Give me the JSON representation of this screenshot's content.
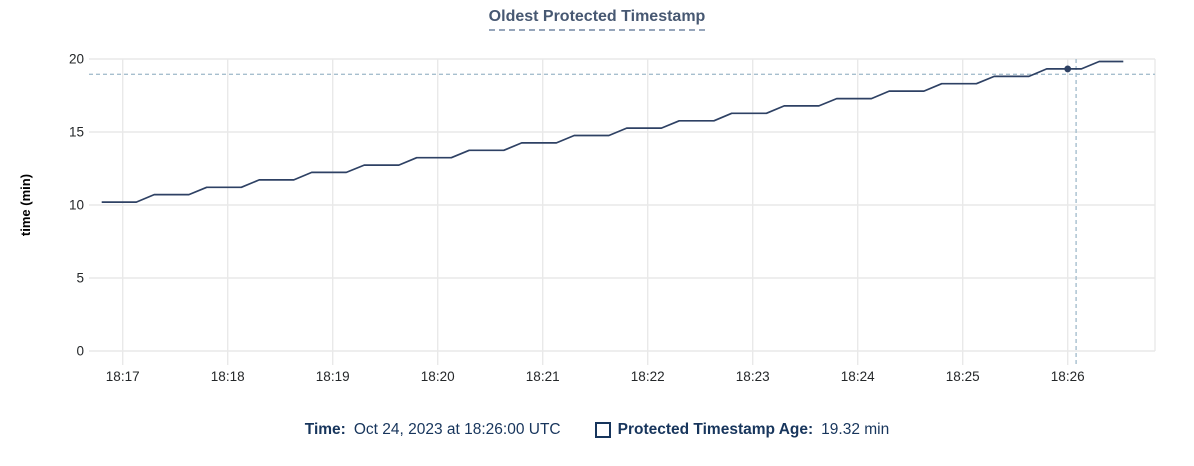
{
  "header": {
    "title": "Oldest Protected Timestamp"
  },
  "legend": {
    "time_label": "Time:",
    "time_value": "Oct 24, 2023 at 18:26:00 UTC",
    "age_label": "Protected Timestamp Age:",
    "age_value": "19.32 min"
  },
  "colors": {
    "line": "#2e4164",
    "dot": "#2e4164",
    "title": "#475872",
    "legend_text": "#17355c",
    "grid": "#e9e9e9",
    "crosshair": "#a6bfce",
    "tick_text": "#242729",
    "axis_label": "#000000"
  },
  "chart_data": {
    "type": "line",
    "title": "Oldest Protected Timestamp",
    "xlabel": "",
    "ylabel": "time (min)",
    "grid": true,
    "legend_position": "bottom",
    "ylim": [
      0,
      20
    ],
    "y_ticks": [
      0,
      5,
      10,
      15,
      20
    ],
    "x_ticks": [
      "18:17",
      "18:18",
      "18:19",
      "18:20",
      "18:21",
      "18:22",
      "18:23",
      "18:24",
      "18:25",
      "18:26"
    ],
    "x_unit": "minutes after 18:17",
    "series": [
      {
        "name": "Protected Timestamp Age",
        "points": [
          [
            -0.2,
            10.2
          ],
          [
            0.13,
            10.2
          ],
          [
            0.3,
            10.71
          ],
          [
            0.63,
            10.71
          ],
          [
            0.8,
            11.21
          ],
          [
            1.13,
            11.21
          ],
          [
            1.3,
            11.72
          ],
          [
            1.63,
            11.72
          ],
          [
            1.8,
            12.23
          ],
          [
            2.13,
            12.23
          ],
          [
            2.3,
            12.73
          ],
          [
            2.63,
            12.73
          ],
          [
            2.8,
            13.24
          ],
          [
            3.13,
            13.24
          ],
          [
            3.3,
            13.75
          ],
          [
            3.63,
            13.75
          ],
          [
            3.8,
            14.25
          ],
          [
            4.13,
            14.25
          ],
          [
            4.3,
            14.76
          ],
          [
            4.63,
            14.76
          ],
          [
            4.8,
            15.27
          ],
          [
            5.13,
            15.27
          ],
          [
            5.3,
            15.77
          ],
          [
            5.63,
            15.77
          ],
          [
            5.8,
            16.28
          ],
          [
            6.13,
            16.28
          ],
          [
            6.3,
            16.79
          ],
          [
            6.63,
            16.79
          ],
          [
            6.8,
            17.29
          ],
          [
            7.13,
            17.29
          ],
          [
            7.3,
            17.8
          ],
          [
            7.63,
            17.8
          ],
          [
            7.8,
            18.31
          ],
          [
            8.13,
            18.31
          ],
          [
            8.3,
            18.81
          ],
          [
            8.63,
            18.81
          ],
          [
            8.8,
            19.32
          ],
          [
            9.13,
            19.32
          ],
          [
            9.3,
            19.83
          ],
          [
            9.53,
            19.83
          ]
        ]
      }
    ],
    "hover": {
      "crosshair_x_min": 9.08,
      "crosshair_y_value": 18.95,
      "highlighted_point": [
        9.0,
        19.32
      ],
      "highlighted_time": "Oct 24, 2023 at 18:26:00 UTC",
      "highlighted_value": "19.32 min"
    }
  }
}
